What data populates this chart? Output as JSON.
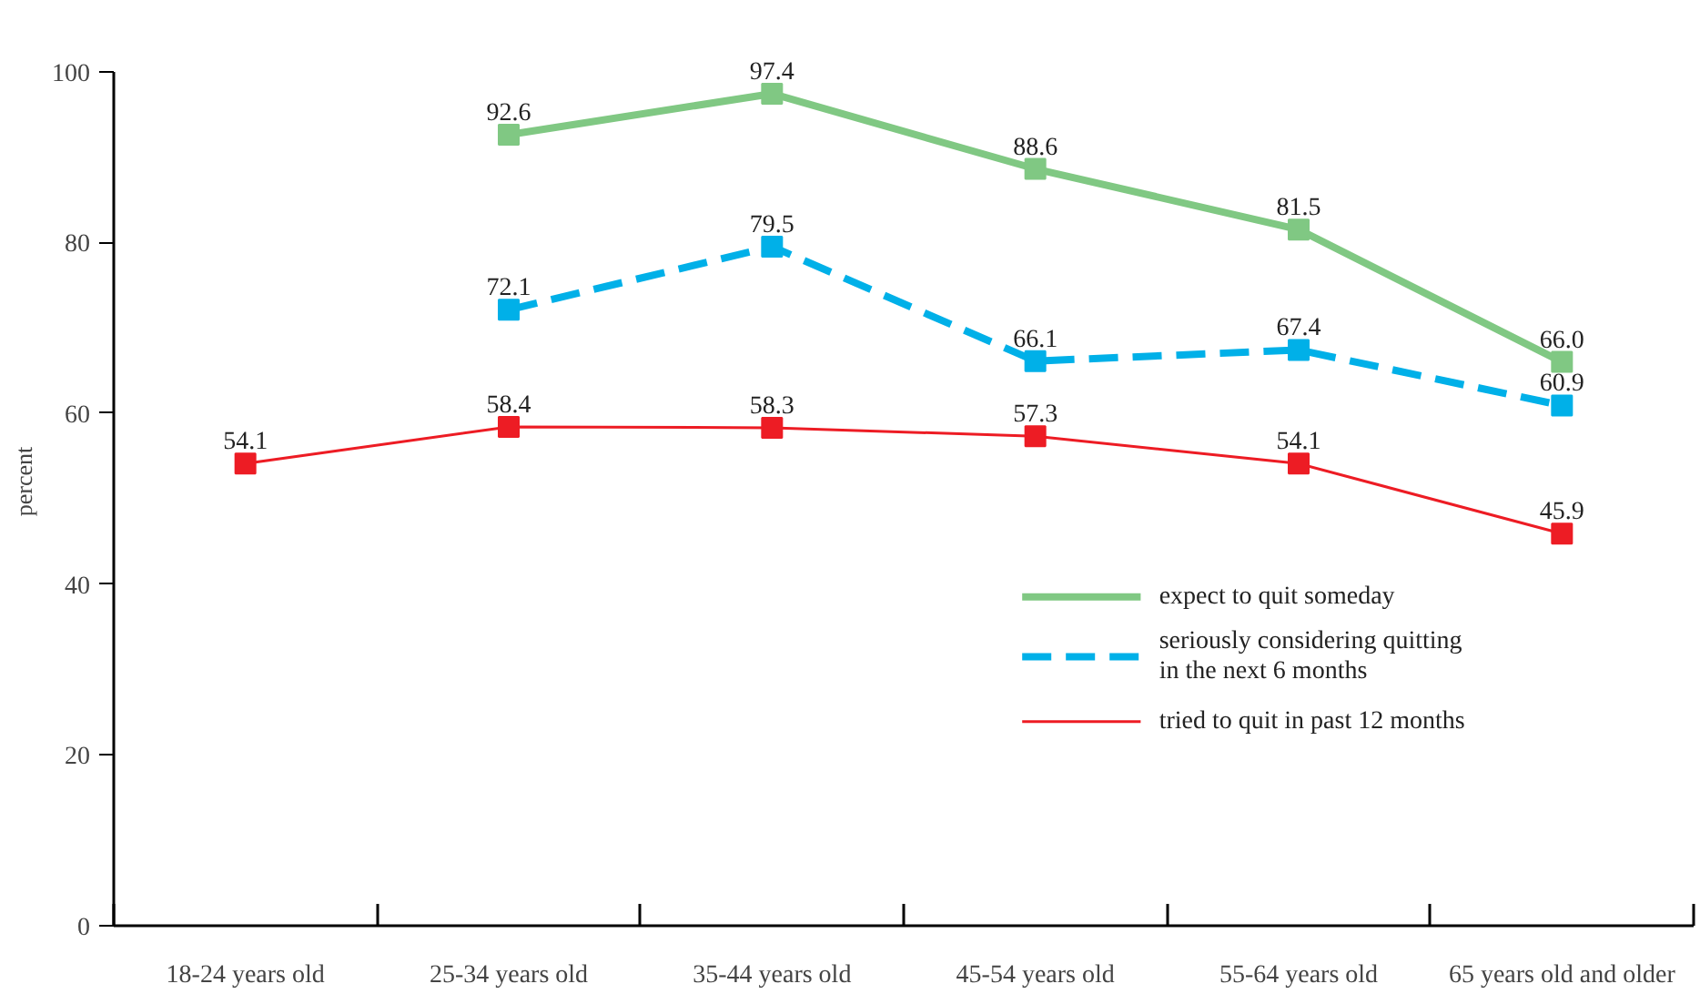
{
  "chart_data": {
    "type": "line",
    "ylabel": "percent",
    "categories": [
      "18-24 years old",
      "25-34 years old",
      "35-44 years old",
      "45-54 years old",
      "55-64 years old",
      "65 years old and older"
    ],
    "series": [
      {
        "name": "expect to quit someday",
        "color": "#80c883",
        "line_style": "solid",
        "values": [
          null,
          92.6,
          97.4,
          88.6,
          81.5,
          66.0
        ],
        "value_labels": [
          null,
          "92.6",
          "97.4",
          "88.6",
          "81.5",
          "66.0"
        ]
      },
      {
        "name": "seriously considering quitting\nin the next 6 months",
        "color": "#00b0e8",
        "line_style": "dashed",
        "values": [
          null,
          72.1,
          79.5,
          66.1,
          67.4,
          60.9
        ],
        "value_labels": [
          null,
          "72.1",
          "79.5",
          "66.1",
          "67.4",
          "60.9"
        ]
      },
      {
        "name": "tried to quit in past 12 months",
        "color": "#ed1c24",
        "line_style": "solid",
        "values": [
          54.1,
          58.4,
          58.3,
          57.3,
          54.1,
          45.9
        ],
        "value_labels": [
          "54.1",
          "58.4",
          "58.3",
          "57.3",
          "54.1",
          "45.9"
        ]
      }
    ],
    "ylim": [
      0,
      100
    ],
    "yticks": [
      0,
      20,
      40,
      60,
      80,
      100
    ],
    "grid": false,
    "legend": "right",
    "marker": "square"
  }
}
